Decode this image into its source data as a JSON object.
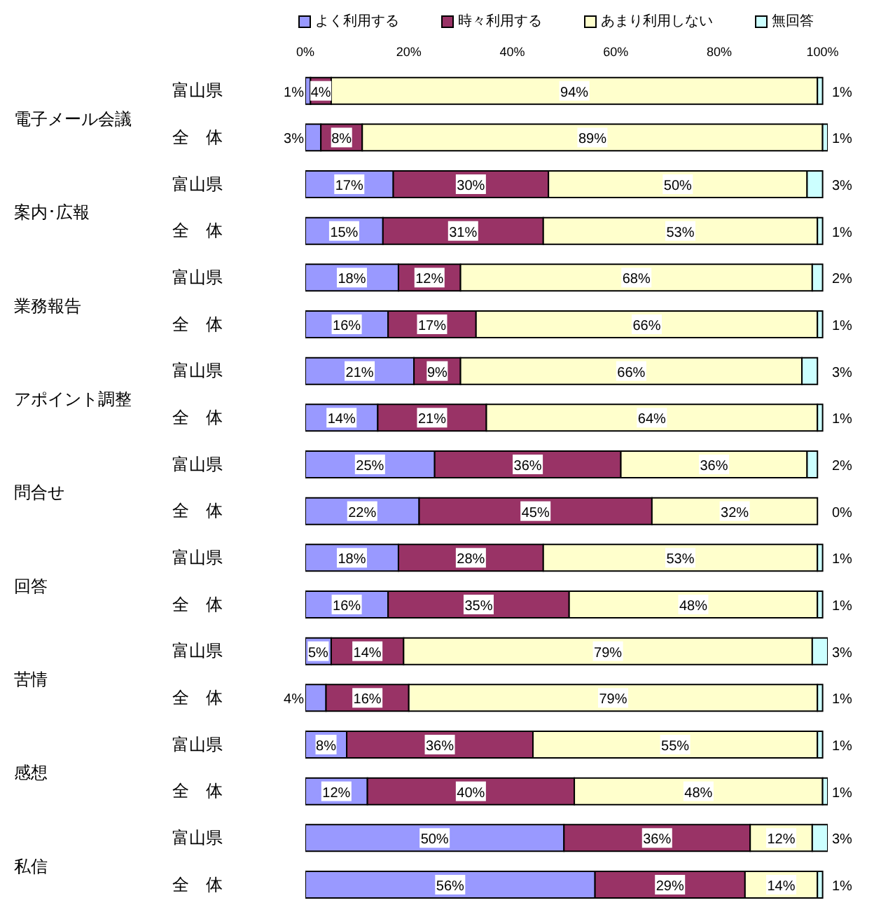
{
  "chart_data": {
    "type": "bar",
    "orientation": "horizontal",
    "stacked": true,
    "legend": "top",
    "grid": false,
    "categories": [
      "富山県",
      "全　体",
      "富山県",
      "全　体",
      "富山県",
      "全　体",
      "富山県",
      "全　体",
      "富山県",
      "全　体",
      "富山県",
      "全　体",
      "富山県",
      "全　体",
      "富山県",
      "全　体",
      "富山県",
      "全　体"
    ],
    "annotations": [
      "電子メール会議",
      "案内･広報",
      "業務報告",
      "アポイント調整",
      "問合せ",
      "回答",
      "苦情",
      "感想",
      "私信"
    ],
    "xlim": [
      0,
      101
    ],
    "xticks": [
      {
        "value": 0,
        "label": "0%"
      },
      {
        "value": 20,
        "label": "20%"
      },
      {
        "value": 40,
        "label": "40%"
      },
      {
        "value": 60,
        "label": "60%"
      },
      {
        "value": 80,
        "label": "80%"
      },
      {
        "value": 100,
        "label": "100%"
      }
    ],
    "series": [
      {
        "name": "よく利用する",
        "color": "#9999ff",
        "values": [
          1,
          3,
          17,
          15,
          18,
          16,
          21,
          14,
          25,
          22,
          18,
          16,
          5,
          4,
          8,
          12,
          50,
          56
        ],
        "value_labels": [
          "1%",
          "3%",
          "17%",
          "15%",
          "18%",
          "16%",
          "21%",
          "14%",
          "25%",
          "22%",
          "18%",
          "16%",
          "5%",
          "4%",
          "8%",
          "12%",
          "50%",
          "56%"
        ]
      },
      {
        "name": "時々利用する",
        "color": "#993366",
        "values": [
          4,
          8,
          30,
          31,
          12,
          17,
          9,
          21,
          36,
          45,
          28,
          35,
          14,
          16,
          36,
          40,
          36,
          29
        ],
        "value_labels": [
          "4%",
          "8%",
          "30%",
          "31%",
          "12%",
          "17%",
          "9%",
          "21%",
          "36%",
          "45%",
          "28%",
          "35%",
          "14%",
          "16%",
          "36%",
          "40%",
          "36%",
          "29%"
        ]
      },
      {
        "name": "あまり利用しない",
        "color": "#ffffcc",
        "values": [
          94,
          89,
          50,
          53,
          68,
          66,
          66,
          64,
          36,
          32,
          53,
          48,
          79,
          79,
          55,
          48,
          12,
          14
        ],
        "value_labels": [
          "94%",
          "89%",
          "50%",
          "53%",
          "68%",
          "66%",
          "66%",
          "64%",
          "36%",
          "32%",
          "53%",
          "48%",
          "79%",
          "79%",
          "55%",
          "48%",
          "12%",
          "14%"
        ]
      },
      {
        "name": "無回答",
        "color": "#ccffff",
        "values": [
          1,
          1,
          3,
          1,
          2,
          1,
          3,
          1,
          2,
          0,
          1,
          1,
          3,
          1,
          1,
          1,
          3,
          1
        ],
        "value_labels": [
          "1%",
          "1%",
          "3%",
          "1%",
          "2%",
          "1%",
          "3%",
          "1%",
          "2%",
          "0%",
          "1%",
          "1%",
          "3%",
          "1%",
          "1%",
          "1%",
          "3%",
          "1%"
        ]
      }
    ]
  }
}
